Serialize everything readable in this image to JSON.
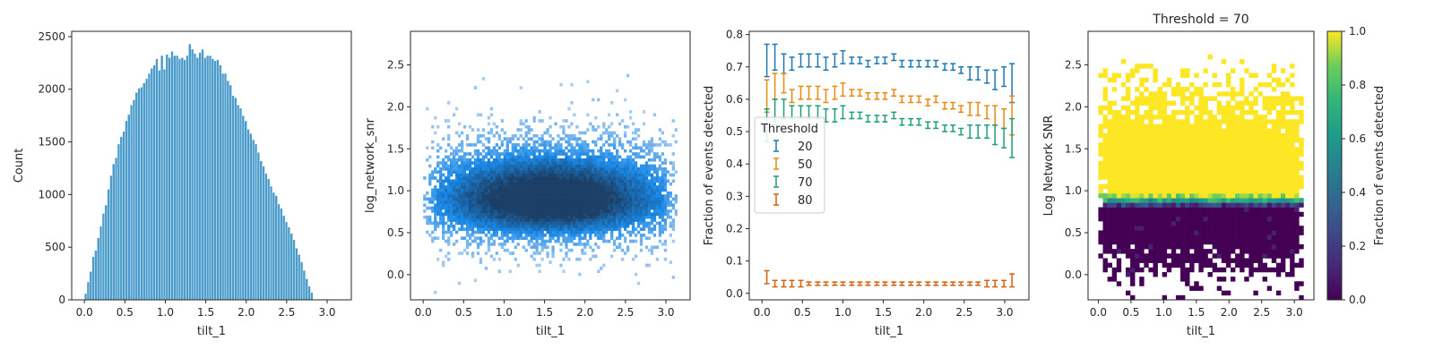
{
  "chart_data": [
    {
      "type": "bar",
      "subtype": "histogram",
      "xlabel": "tilt_1",
      "ylabel": "Count",
      "xlim": [
        -0.157,
        3.299
      ],
      "ylim": [
        0,
        2550
      ],
      "xticks": [
        0.0,
        0.5,
        1.0,
        1.5,
        2.0,
        2.5,
        3.0
      ],
      "xtick_labels": [
        "0.0",
        "0.5",
        "1.0",
        "1.5",
        "2.0",
        "2.5",
        "3.0"
      ],
      "yticks": [
        0,
        500,
        1000,
        1500,
        2000,
        2500
      ],
      "ytick_labels": [
        "0",
        "500",
        "1000",
        "1500",
        "2000",
        "2500"
      ],
      "bin_start": 0.0,
      "bin_width": 0.0314,
      "values": [
        60,
        170,
        270,
        410,
        470,
        590,
        700,
        820,
        900,
        1050,
        1180,
        1290,
        1350,
        1480,
        1550,
        1600,
        1700,
        1760,
        1850,
        1900,
        1970,
        2010,
        2020,
        2060,
        2100,
        2150,
        2200,
        2230,
        2290,
        2180,
        2320,
        2190,
        2330,
        2300,
        2360,
        2320,
        2320,
        2290,
        2300,
        2280,
        2320,
        2430,
        2380,
        2340,
        2300,
        2350,
        2380,
        2300,
        2320,
        2320,
        2290,
        2270,
        2280,
        2230,
        2150,
        2150,
        2080,
        2040,
        1940,
        1920,
        1850,
        1820,
        1750,
        1700,
        1620,
        1580,
        1520,
        1480,
        1400,
        1320,
        1270,
        1200,
        1150,
        1080,
        1020,
        990,
        910,
        870,
        800,
        740,
        690,
        630,
        570,
        490,
        430,
        360,
        280,
        200,
        130,
        70
      ],
      "color": "#4c9ccb"
    },
    {
      "type": "heatmap",
      "subtype": "2d-histogram",
      "xlabel": "tilt_1",
      "ylabel": "log_network_snr",
      "xlim": [
        -0.157,
        3.299
      ],
      "ylim": [
        -0.3,
        2.9
      ],
      "xticks": [
        0.0,
        0.5,
        1.0,
        1.5,
        2.0,
        2.5,
        3.0
      ],
      "xtick_labels": [
        "0.0",
        "0.5",
        "1.0",
        "1.5",
        "2.0",
        "2.5",
        "3.0"
      ],
      "yticks": [
        0.0,
        0.5,
        1.0,
        1.5,
        2.0,
        2.5
      ],
      "ytick_labels": [
        "0.0",
        "0.5",
        "1.0",
        "1.5",
        "2.0",
        "2.5"
      ],
      "density_center": [
        1.57,
        0.88
      ],
      "light_color": "#a9cdf2",
      "dark_color": "#1b3f66",
      "mid_color": "#1a8ae8"
    },
    {
      "type": "line",
      "subtype": "errorbar",
      "xlabel": "tilt_1",
      "ylabel": "Fraction of events detected",
      "xlim": [
        -0.157,
        3.299
      ],
      "ylim": [
        -0.02,
        0.81
      ],
      "xticks": [
        0.0,
        0.5,
        1.0,
        1.5,
        2.0,
        2.5,
        3.0
      ],
      "xtick_labels": [
        "0.0",
        "0.5",
        "1.0",
        "1.5",
        "2.0",
        "2.5",
        "3.0"
      ],
      "yticks": [
        0.0,
        0.1,
        0.2,
        0.3,
        0.4,
        0.5,
        0.6,
        0.7,
        0.8
      ],
      "ytick_labels": [
        "0.0",
        "0.1",
        "0.2",
        "0.3",
        "0.4",
        "0.5",
        "0.6",
        "0.7",
        "0.8"
      ],
      "legend_title": "Threshold",
      "legend_position": "center-left",
      "x": [
        0.06,
        0.16,
        0.27,
        0.37,
        0.48,
        0.58,
        0.69,
        0.79,
        0.9,
        1.0,
        1.11,
        1.21,
        1.31,
        1.42,
        1.52,
        1.63,
        1.73,
        1.84,
        1.94,
        2.05,
        2.15,
        2.26,
        2.36,
        2.46,
        2.57,
        2.67,
        2.78,
        2.88,
        2.99,
        3.09
      ],
      "series": [
        {
          "name": "20",
          "color": "#1f77b4",
          "values": [
            0.72,
            0.73,
            0.71,
            0.71,
            0.72,
            0.72,
            0.72,
            0.71,
            0.72,
            0.73,
            0.72,
            0.72,
            0.71,
            0.72,
            0.72,
            0.73,
            0.71,
            0.71,
            0.71,
            0.71,
            0.71,
            0.7,
            0.7,
            0.69,
            0.68,
            0.68,
            0.67,
            0.66,
            0.67,
            0.65
          ],
          "errors": [
            0.05,
            0.04,
            0.03,
            0.02,
            0.02,
            0.02,
            0.02,
            0.02,
            0.02,
            0.02,
            0.01,
            0.01,
            0.01,
            0.01,
            0.01,
            0.01,
            0.01,
            0.01,
            0.01,
            0.01,
            0.01,
            0.01,
            0.01,
            0.01,
            0.02,
            0.02,
            0.02,
            0.03,
            0.03,
            0.06
          ]
        },
        {
          "name": "50",
          "color": "#e88a10",
          "values": [
            0.61,
            0.64,
            0.65,
            0.61,
            0.62,
            0.62,
            0.62,
            0.61,
            0.62,
            0.63,
            0.62,
            0.62,
            0.61,
            0.61,
            0.61,
            0.62,
            0.6,
            0.6,
            0.6,
            0.59,
            0.6,
            0.58,
            0.58,
            0.57,
            0.57,
            0.57,
            0.56,
            0.55,
            0.54,
            0.55
          ],
          "errors": [
            0.05,
            0.04,
            0.03,
            0.02,
            0.02,
            0.02,
            0.02,
            0.02,
            0.02,
            0.02,
            0.01,
            0.01,
            0.01,
            0.01,
            0.01,
            0.01,
            0.01,
            0.01,
            0.01,
            0.01,
            0.01,
            0.01,
            0.01,
            0.01,
            0.02,
            0.02,
            0.02,
            0.03,
            0.03,
            0.06
          ]
        },
        {
          "name": "70",
          "color": "#1f9e77",
          "values": [
            0.52,
            0.56,
            0.57,
            0.56,
            0.56,
            0.56,
            0.56,
            0.55,
            0.55,
            0.56,
            0.55,
            0.55,
            0.54,
            0.54,
            0.54,
            0.55,
            0.53,
            0.53,
            0.53,
            0.52,
            0.52,
            0.51,
            0.51,
            0.5,
            0.5,
            0.5,
            0.5,
            0.49,
            0.48,
            0.48
          ],
          "errors": [
            0.05,
            0.04,
            0.03,
            0.02,
            0.02,
            0.02,
            0.02,
            0.02,
            0.02,
            0.02,
            0.01,
            0.01,
            0.01,
            0.01,
            0.01,
            0.01,
            0.01,
            0.01,
            0.01,
            0.01,
            0.01,
            0.01,
            0.01,
            0.01,
            0.02,
            0.02,
            0.02,
            0.03,
            0.03,
            0.06
          ]
        },
        {
          "name": "80",
          "color": "#d4600a",
          "values": [
            0.05,
            0.03,
            0.03,
            0.03,
            0.03,
            0.03,
            0.03,
            0.03,
            0.03,
            0.03,
            0.03,
            0.03,
            0.03,
            0.03,
            0.03,
            0.03,
            0.03,
            0.03,
            0.03,
            0.03,
            0.03,
            0.03,
            0.03,
            0.03,
            0.03,
            0.03,
            0.03,
            0.03,
            0.03,
            0.04
          ],
          "errors": [
            0.02,
            0.01,
            0.01,
            0.01,
            0.01,
            0.005,
            0.005,
            0.005,
            0.005,
            0.005,
            0.005,
            0.005,
            0.005,
            0.005,
            0.005,
            0.005,
            0.005,
            0.005,
            0.005,
            0.005,
            0.005,
            0.005,
            0.005,
            0.005,
            0.005,
            0.005,
            0.01,
            0.01,
            0.01,
            0.02
          ]
        }
      ]
    },
    {
      "type": "heatmap",
      "title": "Threshold = 70",
      "xlabel": "tilt_1",
      "ylabel": "Log Network SNR",
      "xlim": [
        -0.157,
        3.299
      ],
      "ylim": [
        -0.3,
        2.9
      ],
      "xticks": [
        0.0,
        0.5,
        1.0,
        1.5,
        2.0,
        2.5,
        3.0
      ],
      "xtick_labels": [
        "0.0",
        "0.5",
        "1.0",
        "1.5",
        "2.0",
        "2.5",
        "3.0"
      ],
      "yticks": [
        0.0,
        0.5,
        1.0,
        1.5,
        2.0,
        2.5
      ],
      "ytick_labels": [
        "0.0",
        "0.5",
        "1.0",
        "1.5",
        "2.0",
        "2.5"
      ],
      "colorbar_label": "Fraction of events detected",
      "colorbar_ticks": [
        0.0,
        0.2,
        0.4,
        0.6,
        0.8,
        1.0
      ],
      "colorbar_tick_labels": [
        "0.0",
        "0.2",
        "0.4",
        "0.6",
        "0.8",
        "1.0"
      ],
      "colormap": "viridis",
      "transition_snr": 0.87
    }
  ]
}
